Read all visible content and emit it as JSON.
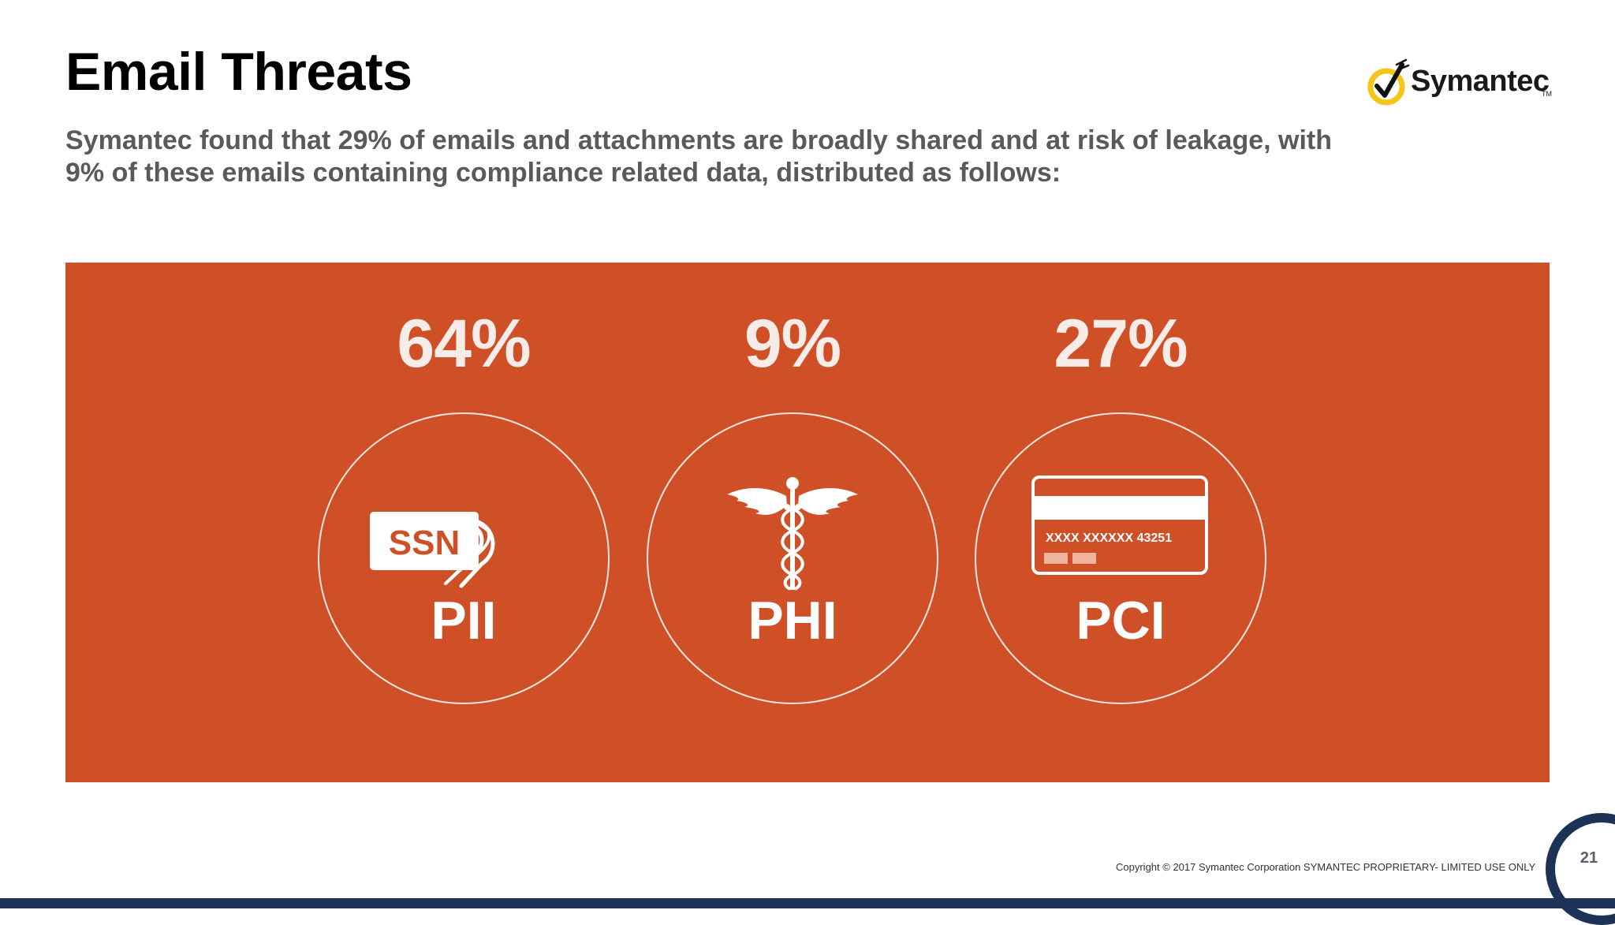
{
  "slide": {
    "title": "Email Threats",
    "subtitle_lines": [
      "Symantec found that 29% of emails and attachments are broadly shared and at risk of leakage, with",
      "9% of these emails containing compliance related data, distributed as follows:"
    ]
  },
  "logo": {
    "name": "Symantec",
    "tm": "TM",
    "mark_icon": "symantec-checkmark-icon",
    "colors": {
      "ring": "#f5c518",
      "check": "#111111"
    }
  },
  "panel": {
    "background": "#cf5026",
    "stats": [
      {
        "value": "64%",
        "label": "PII",
        "icon": "ssn-tag-location-icon",
        "icon_text": "SSN"
      },
      {
        "value": "9%",
        "label": "PHI",
        "icon": "caduceus-icon"
      },
      {
        "value": "27%",
        "label": "PCI",
        "icon": "credit-card-icon",
        "icon_text": "XXXX XXXXXX 43251"
      }
    ]
  },
  "footer": {
    "copyright": "Copyright © 2017 Symantec Corporation SYMANTEC PROPRIETARY- LIMITED USE ONLY",
    "page_number": "21",
    "bar_color": "#1d3257"
  }
}
